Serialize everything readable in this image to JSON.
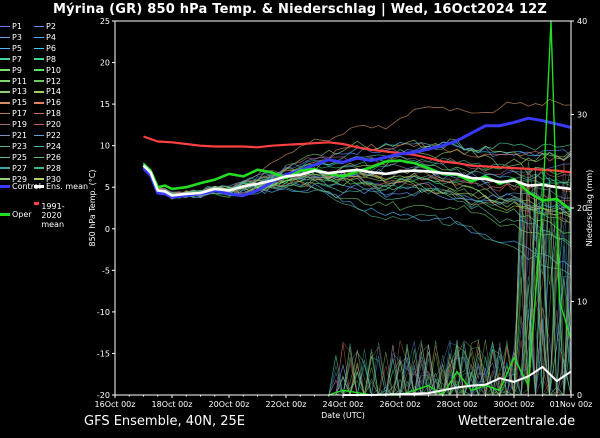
{
  "header": {
    "title": "Mýrina  (GR)  850 hPa Temp. & Niederschlag | Wed, 16Oct2024 12Z"
  },
  "footer": {
    "model": "GFS Ensemble, 40N, 25E",
    "site": "Wetterzentrale.de"
  },
  "legend": {
    "members": [
      {
        "label": "P1",
        "color": "#6f7cff"
      },
      {
        "label": "P2",
        "color": "#5f8cff"
      },
      {
        "label": "P3",
        "color": "#6f9cff"
      },
      {
        "label": "P4",
        "color": "#4fa8ff"
      },
      {
        "label": "P5",
        "color": "#4fb8ff"
      },
      {
        "label": "P6",
        "color": "#40c8ff"
      },
      {
        "label": "P7",
        "color": "#4fd0a0"
      },
      {
        "label": "P8",
        "color": "#3fd88a"
      },
      {
        "label": "P9",
        "color": "#7fe070"
      },
      {
        "label": "P10",
        "color": "#5fe060"
      },
      {
        "label": "P11",
        "color": "#7fd86a"
      },
      {
        "label": "P12",
        "color": "#6ac860"
      },
      {
        "label": "P13",
        "color": "#8fcf70"
      },
      {
        "label": "P14",
        "color": "#9fd060"
      },
      {
        "label": "P15",
        "color": "#d09060"
      },
      {
        "label": "P16",
        "color": "#e08060"
      },
      {
        "label": "P17",
        "color": "#c07a50"
      },
      {
        "label": "P18",
        "color": "#d06a50"
      },
      {
        "label": "P19",
        "color": "#b06080"
      },
      {
        "label": "P20",
        "color": "#c05a70"
      },
      {
        "label": "P21",
        "color": "#8090c0"
      },
      {
        "label": "P22",
        "color": "#60a0d0"
      },
      {
        "label": "P23",
        "color": "#50b090"
      },
      {
        "label": "P24",
        "color": "#40b8b0"
      },
      {
        "label": "P25",
        "color": "#50c0a0"
      },
      {
        "label": "P26",
        "color": "#60c070"
      },
      {
        "label": "P27",
        "color": "#40a8a0"
      },
      {
        "label": "P28",
        "color": "#3fb890"
      },
      {
        "label": "P29",
        "color": "#9ad070"
      },
      {
        "label": "P30",
        "color": "#b0d060"
      }
    ],
    "control": {
      "label": "Control",
      "color": "#3a3aff"
    },
    "ens_mean": {
      "label": "Ens. mean",
      "color": "#ffffff"
    },
    "climate_mean": {
      "label": "1991-2020 mean",
      "color": "#ff4040"
    },
    "oper": {
      "label": "Oper",
      "color": "#22dd22"
    }
  },
  "chart_data": {
    "type": "line",
    "title": "Mýrina  (GR)  850 hPa Temp. & Niederschlag | Wed, 16Oct2024 12Z",
    "xlabel": "Date (UTC)",
    "ylabel": "850 hPa Temp. (°C)",
    "y2label": "Niederschlag (mm)",
    "x_ticks": [
      "16Oct 00z",
      "18Oct 00z",
      "20Oct 00z",
      "22Oct 00z",
      "24Oct 00z",
      "26Oct 00z",
      "28Oct 00z",
      "30Oct 00z",
      "01Nov 00z"
    ],
    "x_range_days": [
      0,
      16
    ],
    "ylim": [
      -20,
      25
    ],
    "y_ticks": [
      -20,
      -15,
      -10,
      -5,
      0,
      5,
      10,
      15,
      20,
      25
    ],
    "y2lim": [
      0,
      40
    ],
    "y2_ticks": [
      0,
      10,
      20,
      30,
      40
    ],
    "grid": false,
    "climate_mean_temp": {
      "name": "1991-2020 mean",
      "color": "#ff4040",
      "x": [
        1.0,
        1.5,
        2.0,
        2.5,
        3.0,
        3.5,
        4.0,
        4.5,
        5.0,
        5.5,
        6.0,
        6.5,
        7.0,
        7.5,
        8.0,
        8.5,
        9.0,
        9.5,
        10.0,
        10.5,
        11.0,
        11.5,
        12.0,
        12.5,
        13.0,
        13.5,
        14.0,
        14.5,
        15.0,
        15.5,
        16.0
      ],
      "y": [
        11.1,
        10.5,
        10.4,
        10.2,
        10.0,
        9.9,
        9.9,
        9.9,
        9.8,
        10.0,
        10.1,
        10.2,
        10.3,
        10.4,
        10.2,
        9.8,
        9.5,
        9.3,
        9.1,
        8.9,
        8.5,
        8.1,
        7.9,
        7.6,
        7.5,
        7.4,
        7.3,
        7.2,
        7.1,
        7.0,
        6.8
      ]
    },
    "ens_mean_temp": {
      "name": "Ens. mean",
      "color": "#ffffff",
      "x": [
        1.0,
        1.25,
        1.5,
        1.75,
        2.0,
        2.5,
        3.0,
        3.5,
        4.0,
        4.5,
        5.0,
        5.5,
        6.0,
        6.5,
        7.0,
        7.5,
        8.0,
        8.5,
        9.0,
        9.5,
        10.0,
        10.5,
        11.0,
        11.5,
        12.0,
        12.5,
        13.0,
        13.5,
        14.0,
        14.5,
        15.0,
        15.5,
        16.0
      ],
      "y": [
        7.6,
        6.8,
        4.6,
        4.5,
        4.0,
        4.2,
        4.3,
        4.8,
        4.6,
        5.1,
        5.4,
        5.8,
        6.3,
        6.5,
        7.0,
        6.7,
        6.9,
        7.1,
        6.8,
        6.6,
        6.9,
        7.0,
        6.9,
        6.7,
        6.6,
        6.1,
        6.0,
        5.6,
        5.8,
        5.2,
        5.3,
        5.0,
        4.8
      ]
    },
    "control_temp": {
      "name": "Control",
      "color": "#3a3aff",
      "x": [
        1.0,
        1.25,
        1.5,
        1.75,
        2.0,
        2.5,
        3.0,
        3.5,
        4.0,
        4.5,
        5.0,
        5.5,
        6.0,
        6.5,
        7.0,
        7.5,
        8.0,
        8.5,
        9.0,
        9.5,
        10.0,
        10.5,
        11.0,
        11.5,
        12.0,
        12.5,
        13.0,
        13.5,
        14.0,
        14.5,
        15.0,
        15.5,
        16.0
      ],
      "y": [
        7.3,
        6.4,
        4.3,
        4.2,
        3.8,
        4.0,
        4.2,
        4.6,
        4.2,
        4.0,
        4.6,
        5.6,
        6.5,
        7.0,
        7.7,
        8.3,
        8.0,
        8.5,
        8.2,
        8.6,
        9.0,
        9.2,
        9.6,
        10.0,
        10.6,
        11.5,
        12.4,
        12.4,
        12.8,
        13.3,
        13.0,
        12.6,
        12.2
      ]
    },
    "oper_temp": {
      "name": "Oper",
      "color": "#22dd22",
      "x": [
        1.0,
        1.25,
        1.5,
        1.75,
        2.0,
        2.5,
        3.0,
        3.5,
        4.0,
        4.5,
        5.0,
        5.5,
        6.0,
        6.5,
        7.0,
        7.5,
        8.0,
        8.5,
        9.0,
        9.5,
        10.0,
        10.5,
        11.0,
        11.5,
        12.0,
        12.5,
        13.0,
        13.5,
        14.0,
        14.5,
        15.0,
        15.5,
        16.0
      ],
      "y": [
        7.8,
        7.0,
        5.0,
        5.2,
        4.8,
        5.0,
        5.5,
        5.9,
        6.6,
        6.3,
        7.1,
        6.8,
        6.1,
        7.0,
        7.2,
        6.6,
        6.3,
        6.9,
        7.4,
        8.1,
        8.2,
        7.9,
        7.3,
        6.6,
        6.5,
        5.7,
        6.3,
        5.4,
        6.0,
        4.4,
        3.4,
        3.6,
        2.2
      ]
    },
    "ens_mean_precip_mm": {
      "name": "Ens. mean",
      "x": [
        8.0,
        9.0,
        10.0,
        11.0,
        11.5,
        12.0,
        12.5,
        13.0,
        13.5,
        14.0,
        14.5,
        15.0,
        15.5,
        16.0
      ],
      "y": [
        0.0,
        0.0,
        0.1,
        0.2,
        0.5,
        0.8,
        1.0,
        1.1,
        1.8,
        1.4,
        2.0,
        3.0,
        1.5,
        2.5
      ]
    },
    "oper_precip_mm": {
      "name": "Oper",
      "x": [
        7.5,
        8.0,
        9.0,
        10.0,
        11.0,
        11.5,
        12.0,
        12.5,
        13.0,
        13.5,
        14.0,
        14.5,
        15.0,
        15.3,
        15.6,
        16.0
      ],
      "y": [
        0.0,
        0.5,
        0.0,
        0.0,
        1.0,
        0.0,
        2.5,
        0.5,
        1.0,
        0.5,
        4.0,
        1.0,
        20.0,
        40.0,
        10.0,
        6.0
      ]
    }
  }
}
